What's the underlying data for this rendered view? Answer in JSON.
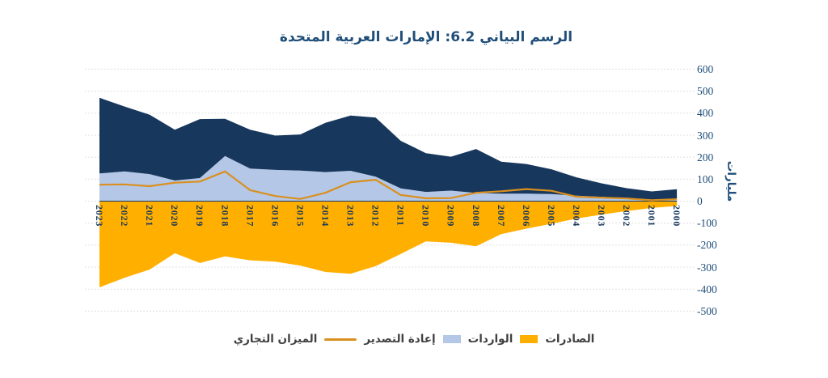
{
  "title": "الرسم البياني 6.2: الإمارات العربية المتحدة",
  "y_axis": {
    "unit_label": "مليارات",
    "ticks": [
      "600",
      "500",
      "400",
      "300",
      "200",
      "100",
      "0",
      "-100",
      "-200",
      "-300",
      "-400",
      "-500"
    ]
  },
  "legend": {
    "parts": [
      {
        "kind": "label",
        "text": "الصادرات"
      },
      {
        "kind": "swatch-square",
        "color": "#FFAF00"
      },
      {
        "kind": "label",
        "text": "الواردات"
      },
      {
        "kind": "swatch-square",
        "color": "#B4C7E7"
      },
      {
        "kind": "label",
        "text": "إعادة التصدير"
      },
      {
        "kind": "swatch-line",
        "color": "#D9901F"
      },
      {
        "kind": "label",
        "text": "الميزان التجاري"
      }
    ]
  },
  "colors": {
    "navy": "#17375D",
    "light_blue": "#B4C7E7",
    "orange": "#FFAF00",
    "balance_line": "#D9901F",
    "grid": "#E0E0E0",
    "axis_text": "#1F4E79",
    "year_text": "#17375D",
    "zero_axis": "#17375D",
    "title_text": "#1F4E79",
    "legend_text": "#404040"
  },
  "chart_data": {
    "type": "area",
    "title": "الرسم البياني 6.2: الإمارات العربية المتحدة",
    "ylabel": "مليارات",
    "ylim": [
      -500,
      600
    ],
    "y_tick_step": 100,
    "x_reversed": true,
    "grid": true,
    "legend_position": "bottom",
    "categories": [
      2023,
      2022,
      2021,
      2020,
      2019,
      2018,
      2017,
      2016,
      2015,
      2014,
      2013,
      2012,
      2011,
      2010,
      2009,
      2008,
      2007,
      2006,
      2005,
      2004,
      2003,
      2002,
      2001,
      2000
    ],
    "series": [
      {
        "name": "الصادرات",
        "type": "area",
        "color": "#17375D",
        "stacked_on": "إعادة التصدير",
        "values": [
          344,
          295,
          270,
          231,
          268,
          169,
          177,
          156,
          164,
          224,
          251,
          269,
          216,
          176,
          154,
          200,
          145,
          135,
          113,
          83,
          61,
          46,
          39,
          42
        ]
      },
      {
        "name": "إعادة التصدير",
        "type": "area",
        "color": "#B4C7E7",
        "values": [
          126,
          135,
          123,
          94,
          105,
          205,
          148,
          142,
          139,
          132,
          138,
          111,
          58,
          42,
          48,
          37,
          34,
          34,
          32,
          25,
          20,
          13,
          5,
          12
        ]
      },
      {
        "name": "الواردات",
        "type": "area",
        "color": "#FFAF00",
        "values": [
          -392,
          -348,
          -311,
          -237,
          -281,
          -251,
          -269,
          -275,
          -293,
          -322,
          -330,
          -295,
          -240,
          -183,
          -189,
          -205,
          -150,
          -125,
          -103,
          -79,
          -61,
          -45,
          -31,
          -22
        ]
      },
      {
        "name": "الميزان التجاري",
        "type": "line",
        "color": "#D9901F",
        "values": [
          75,
          76,
          68,
          84,
          89,
          135,
          50,
          23,
          10,
          38,
          86,
          97,
          28,
          13,
          14,
          38,
          45,
          55,
          47,
          20,
          16,
          12,
          4,
          9
        ]
      }
    ]
  }
}
